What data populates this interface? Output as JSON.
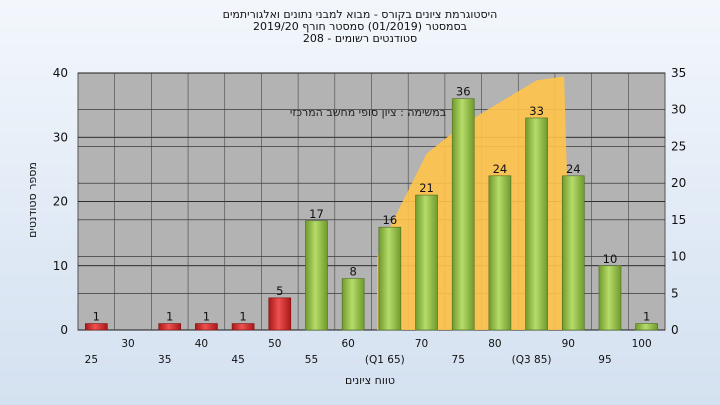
{
  "chart_data": {
    "type": "bar",
    "title_lines": [
      "היסטוגרמת ציונים בקורס - מבוא למבני נתונים ואלגוריתמים",
      "בסמסטר  (01/2019)  סמסטר חורף 2019/20",
      "סטודנטים רשומים - 208"
    ],
    "xlabel": "טווח ציונים",
    "ylabel": "מספר סטודנטים",
    "annotation": "במשימה : ציון סופי מחשב המרכזי",
    "ylim": [
      0,
      40
    ],
    "y2lim": [
      0,
      35
    ],
    "yticks": [
      "0",
      "10",
      "20",
      "30",
      "40"
    ],
    "y2ticks": [
      "0",
      "5",
      "10",
      "15",
      "20",
      "25",
      "30",
      "35"
    ],
    "grid": true,
    "x_tick_labels": [
      "25",
      "30",
      "35",
      "40",
      "45",
      "50",
      "55",
      "60",
      "(Q1 65)",
      "70",
      "75",
      "80",
      "(Q3 85)",
      "90",
      "95",
      "100"
    ],
    "categories": [
      "25",
      "30",
      "35",
      "40",
      "45",
      "50",
      "55",
      "60",
      "65",
      "70",
      "75",
      "80",
      "85",
      "90",
      "95",
      "100"
    ],
    "values": [
      1,
      0,
      1,
      1,
      1,
      5,
      17,
      8,
      16,
      21,
      36,
      24,
      33,
      24,
      10,
      1
    ],
    "data_labels": [
      "1",
      "",
      "1",
      "1",
      "1",
      "5",
      "17",
      "8",
      "16",
      "21",
      "36",
      "24",
      "33",
      "24",
      "10",
      "1"
    ],
    "bar_colors": {
      "fail": "#d42a2a",
      "pass": "#8fc043"
    },
    "fail_threshold": 50,
    "area_series": {
      "color": "#ffc34a",
      "x": [
        "65",
        "70",
        "75",
        "80",
        "85"
      ],
      "values": [
        14,
        24,
        28,
        31,
        34
      ]
    }
  }
}
